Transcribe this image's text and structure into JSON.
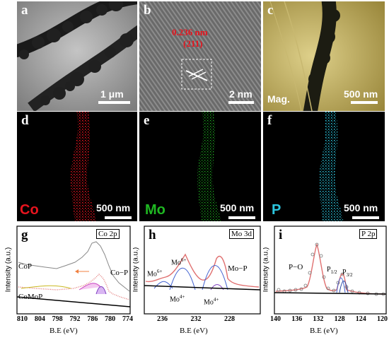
{
  "panels": {
    "a": {
      "label": "a",
      "scale": "1 μm"
    },
    "b": {
      "label": "b",
      "spacing": "0.236 nm",
      "plane": "(211)",
      "scale": "2 nm"
    },
    "c": {
      "label": "c",
      "mode": "Mag.",
      "scale": "500 nm"
    },
    "d": {
      "label": "d",
      "element": "Co",
      "scale": "500 nm",
      "color": "#e8141e"
    },
    "e": {
      "label": "e",
      "element": "Mo",
      "scale": "500 nm",
      "color": "#1fb822"
    },
    "f": {
      "label": "f",
      "element": "P",
      "scale": "500 nm",
      "color": "#2cc6df"
    }
  },
  "xps": {
    "g": {
      "label": "g",
      "title": "Co 2p",
      "ylabel": "Intensity (a.u.)",
      "xlabel": "B.E (eV)",
      "ticks": [
        "810",
        "804",
        "798",
        "792",
        "786",
        "780",
        "774"
      ],
      "annotations": {
        "top": "CoP",
        "bottom": "CoMoP",
        "peak": "Co−P"
      }
    },
    "h": {
      "label": "h",
      "title": "Mo 3d",
      "ylabel": "Intensity (a.u.)",
      "xlabel": "B.E (eV)",
      "ticks": [
        "236",
        "232",
        "228"
      ],
      "annotations": {
        "mo6a": "Mo",
        "mo6a_sup": "6+",
        "mo6b": "Mo",
        "mo6b_sup": "6+",
        "mop": "Mo−P",
        "mo4a": "Mo",
        "mo4a_sup": "4+",
        "mo4b": "Mo",
        "mo4b_sup": "4+"
      }
    },
    "i": {
      "label": "i",
      "title": "P 2p",
      "ylabel": "Intensity (a.u.)",
      "xlabel": "B.E (eV)",
      "ticks": [
        "140",
        "136",
        "132",
        "128",
        "124",
        "120"
      ],
      "annotations": {
        "po": "P−O",
        "p12": "P",
        "p12_sub": "1/2",
        "p32": "P",
        "p32_sub": "3/2"
      }
    }
  }
}
